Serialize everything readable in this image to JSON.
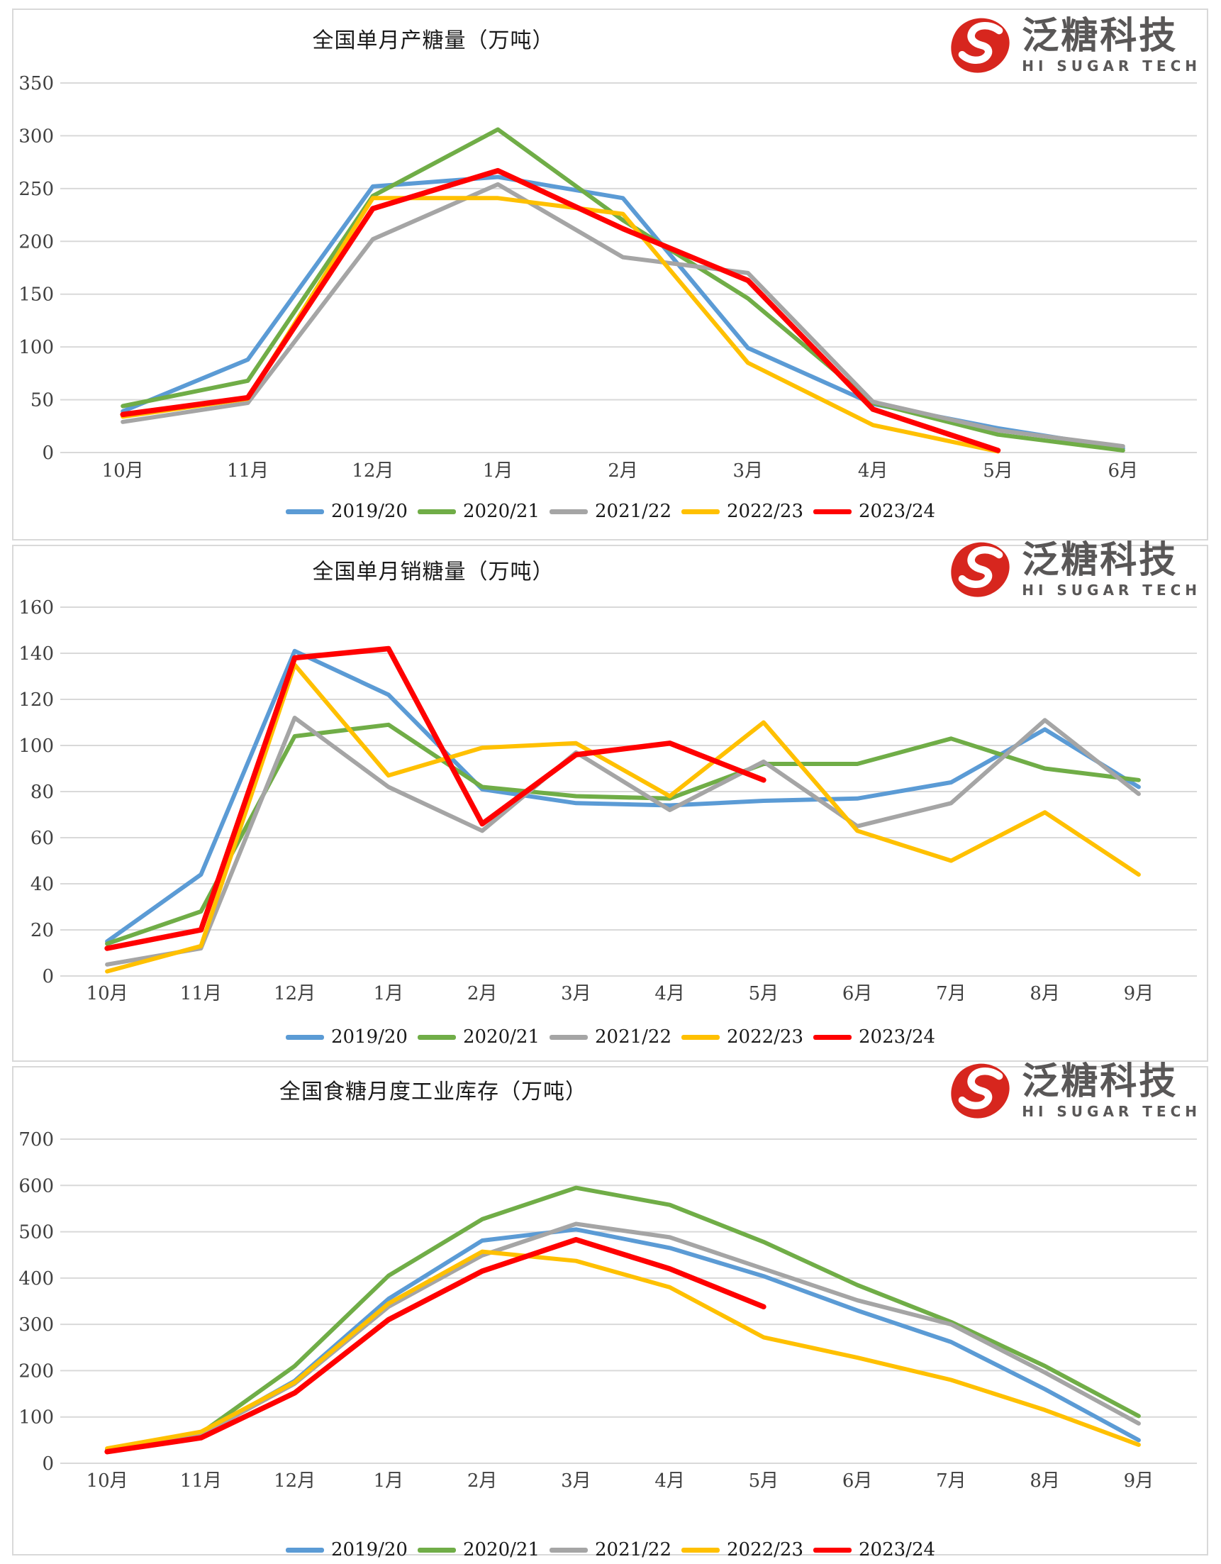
{
  "brand": {
    "name_cn": "泛糖科技",
    "name_en": "HI SUGAR TECH",
    "logo_color": "#D7261E",
    "text_color": "#595757"
  },
  "colors": {
    "s2019_20": "#5B9BD5",
    "s2020_21": "#70AD47",
    "s2021_22": "#A5A5A5",
    "s2022_23": "#FFC000",
    "s2023_24": "#FF0000",
    "gridline": "#D9D9D9",
    "axis_text": "#404040"
  },
  "chart_data": [
    {
      "type": "line",
      "title": "全国单月产糖量（万吨）",
      "xlabel": "",
      "ylabel": "",
      "ylim": [
        0,
        350
      ],
      "ytick_step": 50,
      "yticks": [
        0,
        50,
        100,
        150,
        200,
        250,
        300,
        350
      ],
      "grid": true,
      "legend_position": "bottom",
      "categories": [
        "10月",
        "11月",
        "12月",
        "1月",
        "2月",
        "3月",
        "4月",
        "5月",
        "6月"
      ],
      "series": [
        {
          "name": "2019/20",
          "color": "#5B9BD5",
          "values": [
            39,
            88,
            252,
            261,
            241,
            99,
            46,
            23,
            4
          ]
        },
        {
          "name": "2020/21",
          "color": "#70AD47",
          "values": [
            44,
            68,
            243,
            306,
            220,
            146,
            47,
            17,
            2
          ]
        },
        {
          "name": "2021/22",
          "color": "#A5A5A5",
          "values": [
            29,
            47,
            202,
            254,
            185,
            170,
            48,
            21,
            6
          ]
        },
        {
          "name": "2022/23",
          "color": "#FFC000",
          "values": [
            34,
            51,
            241,
            241,
            226,
            85,
            26,
            1,
            null
          ]
        },
        {
          "name": "2023/24",
          "color": "#FF0000",
          "values": [
            36,
            52,
            231,
            267,
            212,
            163,
            41,
            2,
            null
          ]
        }
      ]
    },
    {
      "type": "line",
      "title": "全国单月销糖量（万吨）",
      "xlabel": "",
      "ylabel": "",
      "ylim": [
        0,
        160
      ],
      "ytick_step": 20,
      "yticks": [
        0,
        20,
        40,
        60,
        80,
        100,
        120,
        140,
        160
      ],
      "grid": true,
      "legend_position": "bottom",
      "categories": [
        "10月",
        "11月",
        "12月",
        "1月",
        "2月",
        "3月",
        "4月",
        "5月",
        "6月",
        "7月",
        "8月",
        "9月"
      ],
      "series": [
        {
          "name": "2019/20",
          "color": "#5B9BD5",
          "values": [
            15,
            44,
            141,
            122,
            81,
            75,
            74,
            76,
            77,
            84,
            107,
            82
          ]
        },
        {
          "name": "2020/21",
          "color": "#70AD47",
          "values": [
            14,
            28,
            104,
            109,
            82,
            78,
            77,
            92,
            92,
            103,
            90,
            85
          ]
        },
        {
          "name": "2021/22",
          "color": "#A5A5A5",
          "values": [
            5,
            12,
            112,
            82,
            63,
            97,
            72,
            93,
            65,
            75,
            111,
            79
          ]
        },
        {
          "name": "2022/23",
          "color": "#FFC000",
          "values": [
            2,
            13,
            135,
            87,
            99,
            101,
            78,
            110,
            63,
            50,
            71,
            44
          ]
        },
        {
          "name": "2023/24",
          "color": "#FF0000",
          "values": [
            12,
            20,
            138,
            142,
            66,
            96,
            101,
            85,
            null,
            null,
            null,
            null
          ]
        }
      ]
    },
    {
      "type": "line",
      "title": "全国食糖月度工业库存（万吨）",
      "xlabel": "",
      "ylabel": "",
      "ylim": [
        0,
        700
      ],
      "ytick_step": 100,
      "yticks": [
        0,
        100,
        200,
        300,
        400,
        500,
        600,
        700
      ],
      "grid": true,
      "legend_position": "bottom",
      "categories": [
        "10月",
        "11月",
        "12月",
        "1月",
        "2月",
        "3月",
        "4月",
        "5月",
        "6月",
        "7月",
        "8月",
        "9月"
      ],
      "series": [
        {
          "name": "2019/20",
          "color": "#5B9BD5",
          "values": [
            30,
            63,
            178,
            355,
            481,
            505,
            465,
            404,
            330,
            262,
            160,
            50
          ]
        },
        {
          "name": "2020/21",
          "color": "#70AD47",
          "values": [
            30,
            65,
            210,
            405,
            527,
            595,
            558,
            478,
            385,
            305,
            210,
            102
          ]
        },
        {
          "name": "2021/22",
          "color": "#A5A5A5",
          "values": [
            28,
            62,
            172,
            338,
            449,
            517,
            488,
            420,
            352,
            300,
            196,
            86
          ]
        },
        {
          "name": "2022/23",
          "color": "#FFC000",
          "values": [
            32,
            68,
            175,
            345,
            457,
            437,
            380,
            272,
            228,
            180,
            115,
            40
          ]
        },
        {
          "name": "2023/24",
          "color": "#FF0000",
          "values": [
            25,
            55,
            152,
            310,
            415,
            483,
            420,
            338,
            null,
            null,
            null,
            null
          ]
        }
      ]
    }
  ]
}
